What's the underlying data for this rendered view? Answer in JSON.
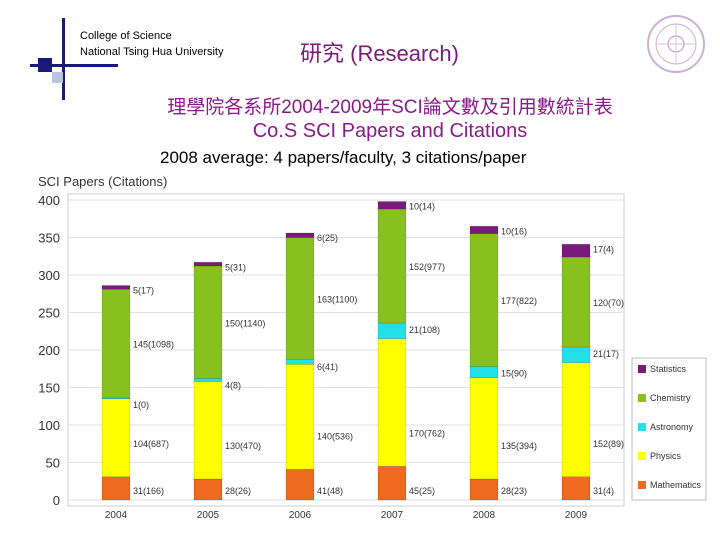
{
  "header": {
    "line1": "College of Science",
    "line2": "National Tsing Hua University",
    "title": "研究 (Research)",
    "title_zh": "理學院各系所2004-2009年SCI論文數及引用數統計表",
    "title_en": "Co.S SCI Papers and Citations",
    "subtitle": "2008 average: 4 papers/faculty, 3 citations/paper"
  },
  "chart_data": {
    "type": "bar",
    "stacked": true,
    "title": "",
    "ylabel": "SCI Papers (Citations)",
    "xlabel": "",
    "ylim": [
      0,
      400
    ],
    "yticks": [
      0,
      50,
      100,
      150,
      200,
      250,
      300,
      350,
      400
    ],
    "categories": [
      "2004",
      "2005",
      "2006",
      "2007",
      "2008",
      "2009"
    ],
    "series": [
      {
        "name": "Mathematics",
        "color": "#ee6a1e",
        "values": [
          31,
          28,
          41,
          45,
          28,
          31
        ],
        "labels": [
          "31(166)",
          "28(26)",
          "41(48)",
          "45(25)",
          "28(23)",
          "31(4)"
        ]
      },
      {
        "name": "Physics",
        "color": "#ffff00",
        "values": [
          104,
          130,
          140,
          170,
          135,
          152
        ],
        "labels": [
          "104(687)",
          "130(470)",
          "140(536)",
          "170(762)",
          "135(394)",
          "152(89)"
        ]
      },
      {
        "name": "Astronomy",
        "color": "#22e0e8",
        "values": [
          1,
          4,
          6,
          21,
          15,
          21
        ],
        "labels": [
          "1(0)",
          "4(8)",
          "6(41)",
          "21(108)",
          "15(90)",
          "21(17)"
        ]
      },
      {
        "name": "Chemistry",
        "color": "#88c020",
        "values": [
          145,
          150,
          163,
          152,
          177,
          120
        ],
        "labels": [
          "145(1098)",
          "150(1140)",
          "163(1100)",
          "152(977)",
          "177(822)",
          "120(70)"
        ]
      },
      {
        "name": "Statistics",
        "color": "#7a1a7a",
        "values": [
          5,
          5,
          6,
          10,
          10,
          17
        ],
        "labels": [
          "5(17)",
          "5(31)",
          "6(25)",
          "10(14)",
          "10(16)",
          "17(4)"
        ]
      }
    ],
    "legend_position": "right"
  }
}
